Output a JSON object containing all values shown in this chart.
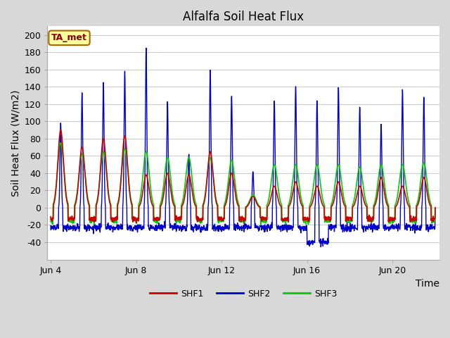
{
  "title": "Alfalfa Soil Heat Flux",
  "xlabel": "Time",
  "ylabel": "Soil Heat Flux (W/m2)",
  "ylim": [
    -60,
    210
  ],
  "yticks": [
    -40,
    -20,
    0,
    20,
    40,
    60,
    80,
    100,
    120,
    140,
    160,
    180,
    200
  ],
  "xlim": [
    3.85,
    22.2
  ],
  "xtick_labels": [
    "Jun 4",
    "Jun 8",
    "Jun 12",
    "Jun 16",
    "Jun 20"
  ],
  "xtick_days": [
    4,
    8,
    12,
    16,
    20
  ],
  "shf1_color": "#cc0000",
  "shf2_color": "#0000cc",
  "shf3_color": "#00cc00",
  "bg_color": "#d8d8d8",
  "plot_bg_color": "#ffffff",
  "grid_color": "#cccccc",
  "annotation_text": "TA_met",
  "annotation_bg": "#ffffa0",
  "annotation_border": "#aa6600",
  "title_fontsize": 12,
  "axis_label_fontsize": 10,
  "tick_fontsize": 9,
  "n_days": 18,
  "points_per_day": 96,
  "shf1_day_peaks": [
    90,
    70,
    80,
    83,
    38,
    40,
    38,
    65,
    40,
    13,
    25,
    30,
    25,
    30,
    25,
    35,
    25,
    35
  ],
  "shf2_day_peaks": [
    98,
    133,
    145,
    158,
    185,
    123,
    62,
    160,
    130,
    42,
    125,
    142,
    125,
    140,
    117,
    97,
    137,
    128
  ],
  "shf3_day_peaks": [
    75,
    62,
    65,
    68,
    65,
    58,
    58,
    58,
    55,
    15,
    50,
    50,
    50,
    50,
    47,
    50,
    50,
    52
  ]
}
